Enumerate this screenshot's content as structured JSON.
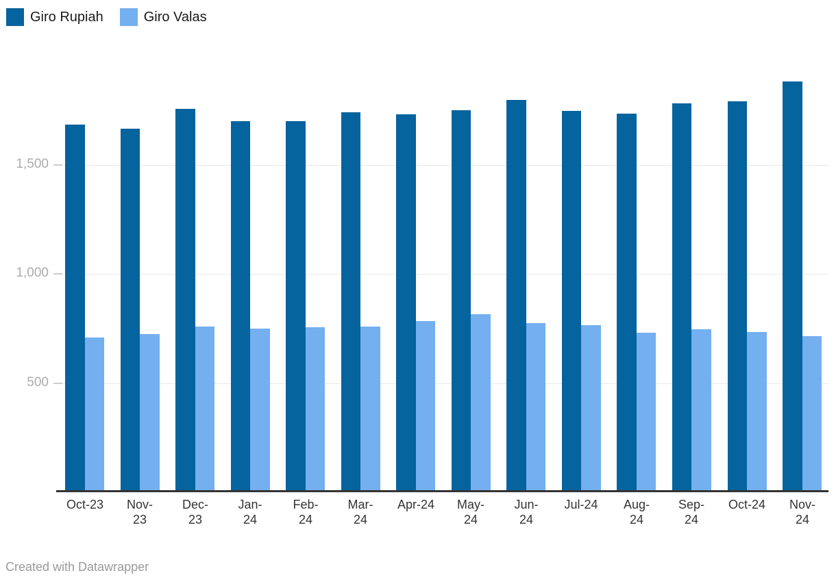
{
  "legend": {
    "items": [
      {
        "label": "Giro Rupiah",
        "color": "#05639e"
      },
      {
        "label": "Giro Valas",
        "color": "#74aff0"
      }
    ]
  },
  "chart_data": {
    "type": "bar",
    "grouped": true,
    "title": "",
    "xlabel": "",
    "ylabel": "",
    "categories": [
      "Oct-23",
      "Nov-23",
      "Dec-23",
      "Jan-24",
      "Feb-24",
      "Mar-24",
      "Apr-24",
      "May-24",
      "Jun-24",
      "Jul-24",
      "Aug-24",
      "Sep-24",
      "Oct-24",
      "Nov-24"
    ],
    "x_tick_display": [
      "Oct-23",
      "Nov-\n23",
      "Dec-\n23",
      "Jan-\n24",
      "Feb-\n24",
      "Mar-\n24",
      "Apr-24",
      "May-\n24",
      "Jun-\n24",
      "Jul-24",
      "Aug-\n24",
      "Sep-\n24",
      "Oct-24",
      "Nov-\n24"
    ],
    "series": [
      {
        "name": "Giro Rupiah",
        "color": "#05639e",
        "values": [
          1685,
          1665,
          1755,
          1700,
          1700,
          1740,
          1730,
          1750,
          1795,
          1745,
          1735,
          1780,
          1790,
          1880
        ]
      },
      {
        "name": "Giro Valas",
        "color": "#74aff0",
        "values": [
          710,
          725,
          760,
          750,
          755,
          760,
          785,
          815,
          775,
          765,
          730,
          745,
          735,
          715
        ]
      }
    ],
    "ylim": [
      0,
      1920
    ],
    "y_ticks": [
      {
        "value": 500,
        "label": "500"
      },
      {
        "value": 1000,
        "label": "1,000"
      },
      {
        "value": 1500,
        "label": "1,500"
      }
    ],
    "grid": "horizontal",
    "legend_position": "top-left"
  },
  "footer": {
    "text": "Created with Datawrapper"
  },
  "colors": {
    "background": "#ffffff",
    "axis_line": "#333333",
    "gridline": "#e8e8e8",
    "tick": "#cccccc",
    "y_label": "#ababab",
    "x_label": "#333333",
    "legend_text": "#1a1a1a",
    "footer_text": "#9a9a9a"
  }
}
